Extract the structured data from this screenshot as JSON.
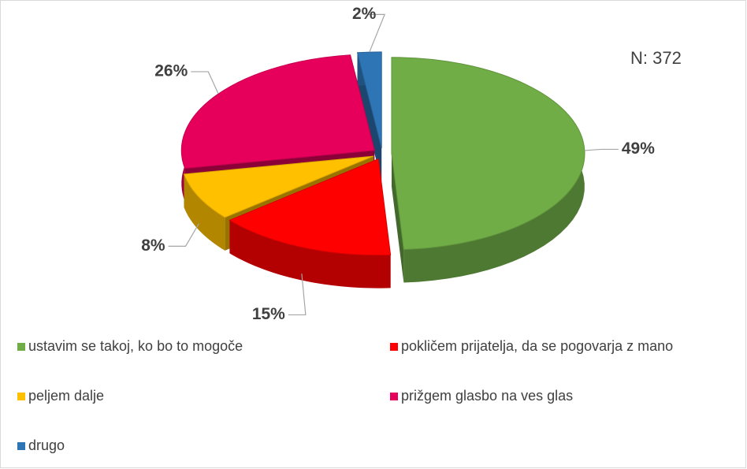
{
  "chart_data": {
    "type": "pie",
    "categories": [
      "ustavim se takoj, ko bo to mogoče",
      "pokličem prijatelja, da se pogovarja z mano",
      "peljem dalje",
      "prižgem glasbo na ves glas",
      "drugo"
    ],
    "values": [
      49,
      15,
      8,
      26,
      2
    ],
    "value_labels": [
      "49%",
      "15%",
      "8%",
      "26%",
      "2%"
    ],
    "colors": [
      "#70ad47",
      "#ff0000",
      "#ffc000",
      "#e6005c",
      "#2e75b6"
    ],
    "annotation": "N: 372",
    "legend": "bottom"
  }
}
